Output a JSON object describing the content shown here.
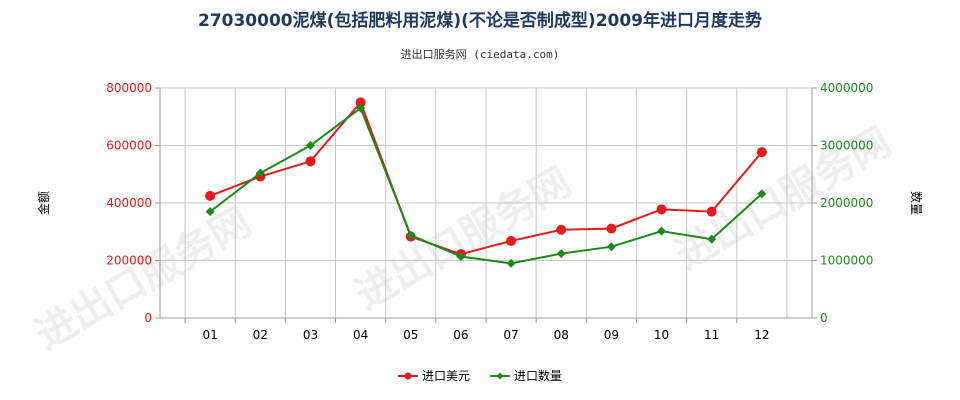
{
  "chart_data": {
    "type": "line",
    "title": "27030000泥煤(包括肥料用泥煤)(不论是否制成型)2009年进口月度走势",
    "subtitle": "进出口服务网 (ciedata.com)",
    "categories": [
      "01",
      "02",
      "03",
      "04",
      "05",
      "06",
      "07",
      "08",
      "09",
      "10",
      "11",
      "12"
    ],
    "series": [
      {
        "name": "进口美元",
        "axis": "left",
        "color": "#e8191a",
        "values": [
          425000,
          492000,
          545000,
          750000,
          283000,
          222000,
          268000,
          307000,
          311000,
          378000,
          370000,
          577000
        ]
      },
      {
        "name": "进口数量",
        "axis": "right",
        "color": "#1a8a1a",
        "values": [
          1850000,
          2520000,
          3000000,
          3650000,
          1440000,
          1070000,
          950000,
          1120000,
          1240000,
          1510000,
          1370000,
          2160000
        ]
      }
    ],
    "y_left": {
      "label": "金额",
      "min": 0,
      "max": 800000,
      "ticks": [
        "0",
        "200000",
        "400000",
        "600000",
        "800000"
      ],
      "color": "#e8191a"
    },
    "y_right": {
      "label": "数量",
      "min": 0,
      "max": 4000000,
      "ticks": [
        "0",
        "1000000",
        "2000000",
        "3000000",
        "4000000"
      ],
      "color": "#1a8a1a"
    },
    "grid": true,
    "legend_position": "bottom-center",
    "watermark": "进出口服务网"
  }
}
